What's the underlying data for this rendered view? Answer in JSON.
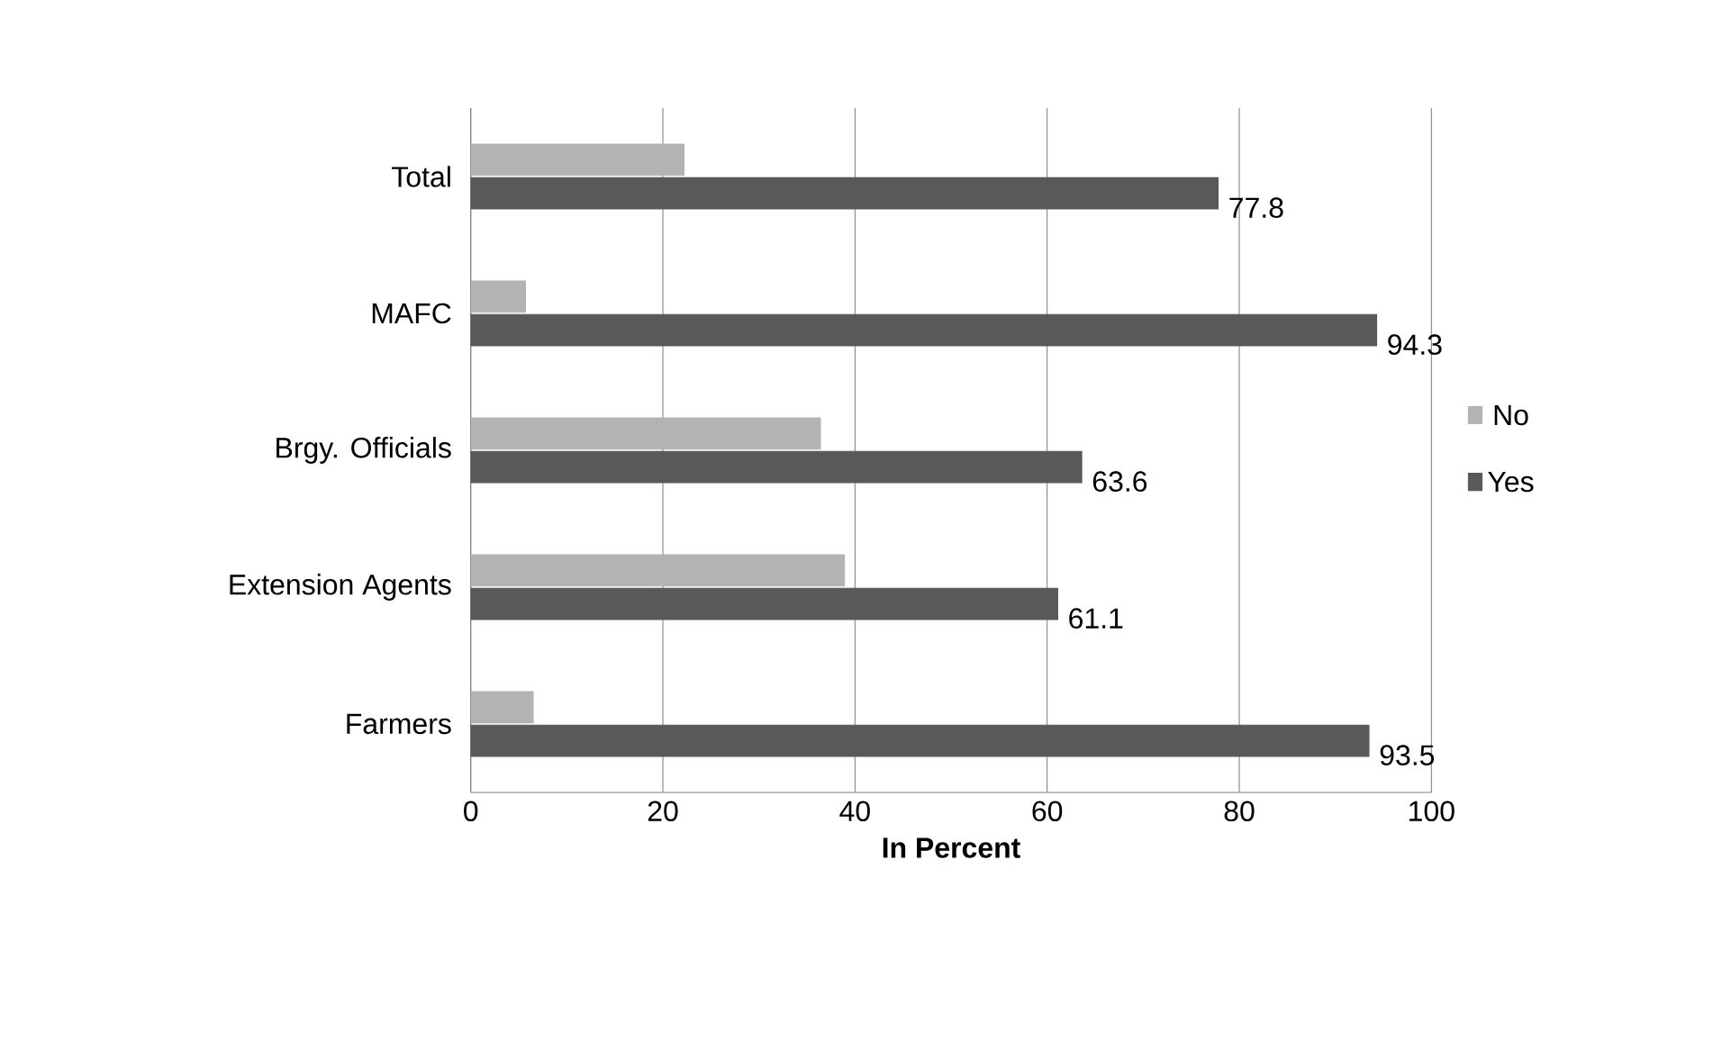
{
  "chart_data": {
    "type": "bar",
    "orientation": "horizontal",
    "categories": [
      "Total",
      "MAFC",
      "Brgy. Officials",
      "Extension Agents",
      "Farmers"
    ],
    "series": [
      {
        "name": "No",
        "color": "#b3b3b3",
        "values": [
          22.2,
          5.7,
          36.4,
          38.9,
          6.5
        ]
      },
      {
        "name": "Yes",
        "color": "#595959",
        "values": [
          77.8,
          94.3,
          63.6,
          61.1,
          93.5
        ],
        "value_labels": [
          "77.8",
          "94.3",
          "63.6",
          "61.1",
          "93.5"
        ]
      }
    ],
    "xlabel": "**In Percent**",
    "xlim": [
      0,
      100
    ],
    "xticks": [
      0,
      20,
      40,
      60,
      80,
      100
    ],
    "grid": "x",
    "legend": "right"
  }
}
